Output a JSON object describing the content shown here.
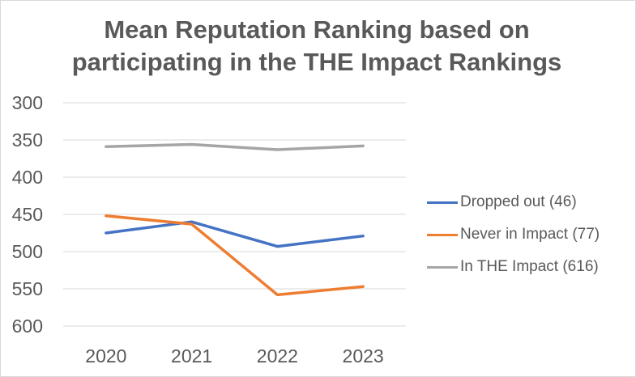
{
  "chart_data": {
    "type": "line",
    "title_lines": [
      "Mean Reputation Ranking based on",
      "participating in the THE Impact Rankings"
    ],
    "title": "Mean Reputation Ranking based on participating in the THE Impact Rankings",
    "xlabel": "",
    "ylabel": "",
    "categories": [
      "2020",
      "2021",
      "2022",
      "2023"
    ],
    "y_ticks": [
      300,
      350,
      400,
      450,
      500,
      550,
      600
    ],
    "ylim": [
      300,
      600
    ],
    "y_inverted": true,
    "grid": true,
    "legend_position": "right",
    "series": [
      {
        "name": "Dropped out (46)",
        "color": "#4472c4",
        "values": [
          475,
          460,
          493,
          479
        ]
      },
      {
        "name": "Never in Impact (77)",
        "color": "#ed7d31",
        "values": [
          452,
          463,
          558,
          547
        ]
      },
      {
        "name": "In THE Impact (616)",
        "color": "#a5a5a5",
        "values": [
          359,
          356,
          363,
          358
        ]
      }
    ]
  }
}
